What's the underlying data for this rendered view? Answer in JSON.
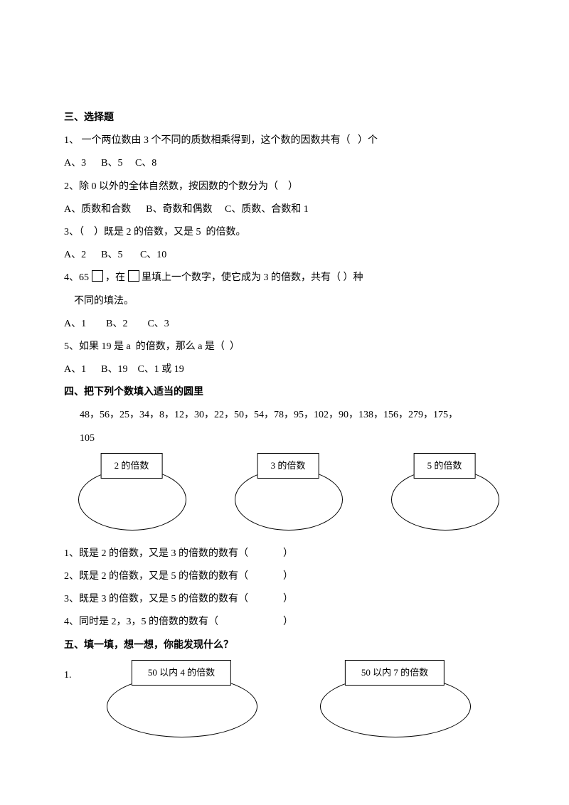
{
  "section3": {
    "title": "三、选择题",
    "q1": {
      "text": "1、 一个两位数由 3 个不同的质数相乘得到，这个数的因数共有（   ）个",
      "opts": "A、3      B、5     C、8"
    },
    "q2": {
      "text": "2、除 0 以外的全体自然数，按因数的个数分为（    ）",
      "opts": "A、质数和合数      B、奇数和偶数     C、质数、合数和 1"
    },
    "q3": {
      "text": "3、（    ）既是 2 的倍数，又是 5  的倍数。",
      "opts": "A、2      B、5       C、10"
    },
    "q4": {
      "text1": "4、65 ",
      "text2": " ，在 ",
      "text3": "  里填上一个数字，使它成为 3 的倍数，共有（    ）种",
      "text4": "    不同的填法。",
      "opts": "A、1        B、2        C、3"
    },
    "q5": {
      "text": "5、如果 19 是 a  的倍数，那么 a 是（  ）",
      "opts": "A、1      B、19    C、1 或 19"
    }
  },
  "section4": {
    "title": "四、把下列个数填入适当的圆里",
    "numbers": "48，56，25，34，8，12，30，22，50，54，78，95，102，90，138，156，279，175，",
    "numbers2": "105",
    "labels": {
      "a": "2 的倍数",
      "b": "3 的倍数",
      "c": "5 的倍数"
    },
    "sub": {
      "q1": "1、既是 2 的倍数，又是 3 的倍数的数有（              ）",
      "q2": "2、既是 2 的倍数，又是 5 的倍数的数有（              ）",
      "q3": "3、既是 3 的倍数，又是 5 的倍数的数有（              ）",
      "q4": "4、同时是 2，3，5 的倍数的数有（                          ）"
    }
  },
  "section5": {
    "title": "五、填一填，想一想，你能发现什么？",
    "num1": "1.",
    "labels": {
      "a": "50 以内 4 的倍数",
      "b": "50 以内 7 的倍数"
    }
  }
}
